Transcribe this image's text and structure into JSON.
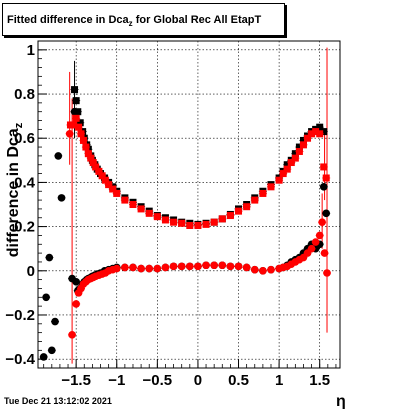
{
  "title": {
    "main": "Fitted difference in Dca",
    "sub": "z",
    "rest": " for Global Rec All EtapT"
  },
  "footer": "Tue Dec 21 13:12:02 2021",
  "chart_data": {
    "type": "scatter",
    "title": "Fitted difference in Dca_z for Global Rec All EtapT",
    "xlabel": "η",
    "ylabel": "difference in Dca_z",
    "xlim": [
      -1.97,
      1.75
    ],
    "ylim": [
      -0.44,
      1.04
    ],
    "xticks": [
      -1.5,
      -1,
      -0.5,
      0,
      0.5,
      1,
      1.5
    ],
    "xtick_labels": [
      "−1.5",
      "−1",
      "−0.5",
      "0",
      "0.5",
      "1",
      "1.5"
    ],
    "yticks": [
      -0.4,
      -0.2,
      0,
      0.2,
      0.4,
      0.6,
      0.8,
      1
    ],
    "ytick_labels": [
      "−0.4",
      "−0.2",
      "0",
      "0.2",
      "0.4",
      "0.6",
      "0.8",
      "1"
    ],
    "grid": true,
    "colors": {
      "series1": "#000000",
      "series2": "#ff0000"
    },
    "series": [
      {
        "name": "",
        "marker": "square",
        "color": "#000000",
        "x": [
          -1.52,
          -1.5,
          -1.48,
          -1.45,
          -1.42,
          -1.4,
          -1.37,
          -1.35,
          -1.32,
          -1.3,
          -1.27,
          -1.24,
          -1.2,
          -1.15,
          -1.1,
          -1.05,
          -1.0,
          -0.9,
          -0.8,
          -0.7,
          -0.6,
          -0.5,
          -0.4,
          -0.3,
          -0.2,
          -0.1,
          0.0,
          0.1,
          0.2,
          0.3,
          0.4,
          0.5,
          0.6,
          0.7,
          0.8,
          0.9,
          1.0,
          1.05,
          1.1,
          1.15,
          1.2,
          1.25,
          1.3,
          1.35,
          1.4,
          1.45,
          1.5,
          1.55
        ],
        "y": [
          0.82,
          0.77,
          0.72,
          0.67,
          0.63,
          0.6,
          0.57,
          0.55,
          0.52,
          0.5,
          0.48,
          0.46,
          0.44,
          0.42,
          0.4,
          0.38,
          0.36,
          0.33,
          0.31,
          0.29,
          0.27,
          0.25,
          0.24,
          0.23,
          0.22,
          0.215,
          0.21,
          0.215,
          0.22,
          0.235,
          0.255,
          0.28,
          0.3,
          0.33,
          0.36,
          0.39,
          0.42,
          0.45,
          0.48,
          0.5,
          0.53,
          0.56,
          0.59,
          0.61,
          0.63,
          0.64,
          0.65,
          0.63
        ]
      },
      {
        "name": "",
        "marker": "circle",
        "color": "#000000",
        "x": [
          -1.9,
          -1.87,
          -1.83,
          -1.8,
          -1.76,
          -1.72,
          -1.68,
          -1.55,
          -1.52,
          -1.5,
          -1.48,
          -1.45,
          -1.42,
          -1.4,
          -1.37,
          -1.35,
          -1.32,
          -1.3,
          -1.27,
          -1.24,
          -1.2,
          -1.15,
          -1.1,
          -1.05,
          -1.0,
          -0.9,
          -0.8,
          -0.7,
          -0.6,
          -0.5,
          -0.4,
          -0.3,
          -0.2,
          -0.1,
          0.0,
          0.1,
          0.2,
          0.3,
          0.4,
          0.5,
          0.6,
          0.7,
          0.8,
          0.9,
          1.0,
          1.05,
          1.1,
          1.15,
          1.2,
          1.25,
          1.3,
          1.35,
          1.4,
          1.45,
          1.5,
          1.55,
          1.58
        ],
        "y": [
          -0.39,
          -0.12,
          0.06,
          -0.36,
          -0.23,
          0.52,
          0.33,
          -0.035,
          0.72,
          -0.05,
          -0.09,
          -0.08,
          -0.06,
          -0.05,
          -0.04,
          -0.035,
          -0.03,
          -0.025,
          -0.02,
          -0.015,
          -0.01,
          0.0,
          0.005,
          0.01,
          0.015,
          0.015,
          0.015,
          0.01,
          0.01,
          0.01,
          0.015,
          0.02,
          0.02,
          0.02,
          0.02,
          0.025,
          0.025,
          0.025,
          0.02,
          0.02,
          0.015,
          0.005,
          0.0,
          0.005,
          0.01,
          0.015,
          0.025,
          0.04,
          0.05,
          0.06,
          0.08,
          0.1,
          0.12,
          0.1,
          0.12,
          0.38,
          0.26
        ]
      },
      {
        "name": "",
        "marker": "square",
        "color": "#ff0000",
        "x": [
          -1.57,
          -1.53,
          -1.5,
          -1.47,
          -1.44,
          -1.41,
          -1.38,
          -1.35,
          -1.32,
          -1.29,
          -1.26,
          -1.22,
          -1.18,
          -1.14,
          -1.1,
          -1.05,
          -1.0,
          -0.9,
          -0.8,
          -0.7,
          -0.6,
          -0.5,
          -0.4,
          -0.3,
          -0.2,
          -0.1,
          0.0,
          0.1,
          0.2,
          0.3,
          0.4,
          0.5,
          0.6,
          0.7,
          0.8,
          0.9,
          1.0,
          1.05,
          1.1,
          1.15,
          1.2,
          1.25,
          1.3,
          1.35,
          1.4,
          1.45,
          1.5,
          1.55,
          1.58
        ],
        "y": [
          0.66,
          0.66,
          0.69,
          0.65,
          0.62,
          0.59,
          0.56,
          0.53,
          0.51,
          0.49,
          0.47,
          0.45,
          0.43,
          0.41,
          0.39,
          0.37,
          0.35,
          0.32,
          0.3,
          0.28,
          0.26,
          0.245,
          0.23,
          0.22,
          0.215,
          0.205,
          0.205,
          0.21,
          0.22,
          0.235,
          0.25,
          0.27,
          0.29,
          0.32,
          0.35,
          0.38,
          0.41,
          0.44,
          0.46,
          0.49,
          0.51,
          0.54,
          0.57,
          0.6,
          0.62,
          0.63,
          0.62,
          0.47,
          0.42
        ]
      },
      {
        "name": "",
        "marker": "circle",
        "color": "#ff0000",
        "x": [
          -1.58,
          -1.55,
          -1.5,
          -1.47,
          -1.44,
          -1.41,
          -1.38,
          -1.35,
          -1.32,
          -1.29,
          -1.26,
          -1.22,
          -1.18,
          -1.14,
          -1.1,
          -1.05,
          -1.0,
          -0.9,
          -0.8,
          -0.7,
          -0.6,
          -0.5,
          -0.4,
          -0.3,
          -0.2,
          -0.1,
          0.0,
          0.1,
          0.2,
          0.3,
          0.4,
          0.5,
          0.6,
          0.7,
          0.8,
          0.9,
          1.0,
          1.05,
          1.1,
          1.15,
          1.2,
          1.25,
          1.3,
          1.35,
          1.4,
          1.45,
          1.5,
          1.53,
          1.56,
          1.59
        ],
        "y": [
          0.62,
          -0.29,
          -0.15,
          -0.1,
          -0.08,
          -0.06,
          -0.05,
          -0.04,
          -0.035,
          -0.03,
          -0.025,
          -0.02,
          -0.015,
          -0.01,
          0.0,
          0.005,
          0.01,
          0.015,
          0.015,
          0.01,
          0.01,
          0.01,
          0.015,
          0.02,
          0.02,
          0.02,
          0.02,
          0.025,
          0.025,
          0.025,
          0.02,
          0.02,
          0.015,
          0.005,
          0.0,
          0.005,
          0.01,
          0.015,
          0.02,
          0.03,
          0.04,
          0.05,
          0.06,
          0.08,
          0.1,
          0.13,
          0.16,
          0.22,
          0.08,
          -0.01
        ]
      }
    ],
    "error_bars": [
      {
        "x": -1.58,
        "y": 0.62,
        "lo": 0.48,
        "hi": 0.9,
        "color": "#ff0000"
      },
      {
        "x": -1.55,
        "y": -0.29,
        "lo": -0.42,
        "hi": 0.78,
        "color": "#ff0000"
      },
      {
        "x": -1.52,
        "y": 0.82,
        "lo": 0.6,
        "hi": 0.95,
        "color": "#000000"
      },
      {
        "x": 1.53,
        "y": 0.22,
        "lo": 0.1,
        "hi": 0.35,
        "color": "#ff0000"
      },
      {
        "x": 1.56,
        "y": 0.47,
        "lo": 0.32,
        "hi": 0.62,
        "color": "#ff0000"
      },
      {
        "x": 1.59,
        "y": -0.01,
        "lo": -0.28,
        "hi": 1.01,
        "color": "#ff0000"
      }
    ]
  }
}
